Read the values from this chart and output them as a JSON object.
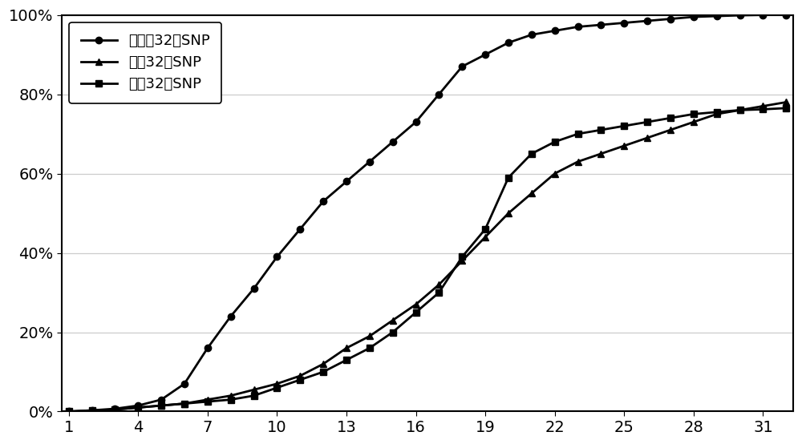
{
  "x": [
    1,
    2,
    3,
    4,
    5,
    6,
    7,
    8,
    9,
    10,
    11,
    12,
    13,
    14,
    15,
    16,
    17,
    18,
    19,
    20,
    21,
    22,
    23,
    24,
    25,
    26,
    27,
    28,
    29,
    30,
    31,
    32
  ],
  "series1_label": "本申请32个SNP",
  "series2_label": "随机32个SNP",
  "series3_label": "品种32个SNP",
  "series1": [
    0.0,
    0.003,
    0.007,
    0.015,
    0.03,
    0.07,
    0.16,
    0.24,
    0.31,
    0.39,
    0.46,
    0.53,
    0.58,
    0.63,
    0.68,
    0.73,
    0.8,
    0.87,
    0.9,
    0.93,
    0.95,
    0.96,
    0.97,
    0.975,
    0.98,
    0.985,
    0.99,
    0.995,
    0.997,
    0.999,
    1.0,
    1.0
  ],
  "series2": [
    0.0,
    0.002,
    0.005,
    0.01,
    0.015,
    0.02,
    0.03,
    0.04,
    0.055,
    0.07,
    0.09,
    0.12,
    0.16,
    0.19,
    0.23,
    0.27,
    0.32,
    0.38,
    0.44,
    0.5,
    0.55,
    0.6,
    0.63,
    0.65,
    0.67,
    0.69,
    0.71,
    0.73,
    0.75,
    0.76,
    0.77,
    0.78
  ],
  "series3": [
    0.0,
    0.002,
    0.005,
    0.01,
    0.015,
    0.02,
    0.025,
    0.03,
    0.04,
    0.06,
    0.08,
    0.1,
    0.13,
    0.16,
    0.2,
    0.25,
    0.3,
    0.39,
    0.46,
    0.59,
    0.65,
    0.68,
    0.7,
    0.71,
    0.72,
    0.73,
    0.74,
    0.75,
    0.755,
    0.76,
    0.762,
    0.765
  ],
  "line_color": "#000000",
  "bg_color": "#ffffff",
  "yticks": [
    0.0,
    0.2,
    0.4,
    0.6,
    0.8,
    1.0
  ],
  "xticks": [
    1,
    4,
    7,
    10,
    13,
    16,
    19,
    22,
    25,
    28,
    31
  ],
  "xlim_min": 1,
  "xlim_max": 32,
  "ylim_min": 0.0,
  "ylim_max": 1.0,
  "title": "",
  "xlabel": "",
  "ylabel": "",
  "font_size_tick": 14,
  "font_size_legend": 13,
  "line_width": 2.0,
  "marker_size": 6
}
